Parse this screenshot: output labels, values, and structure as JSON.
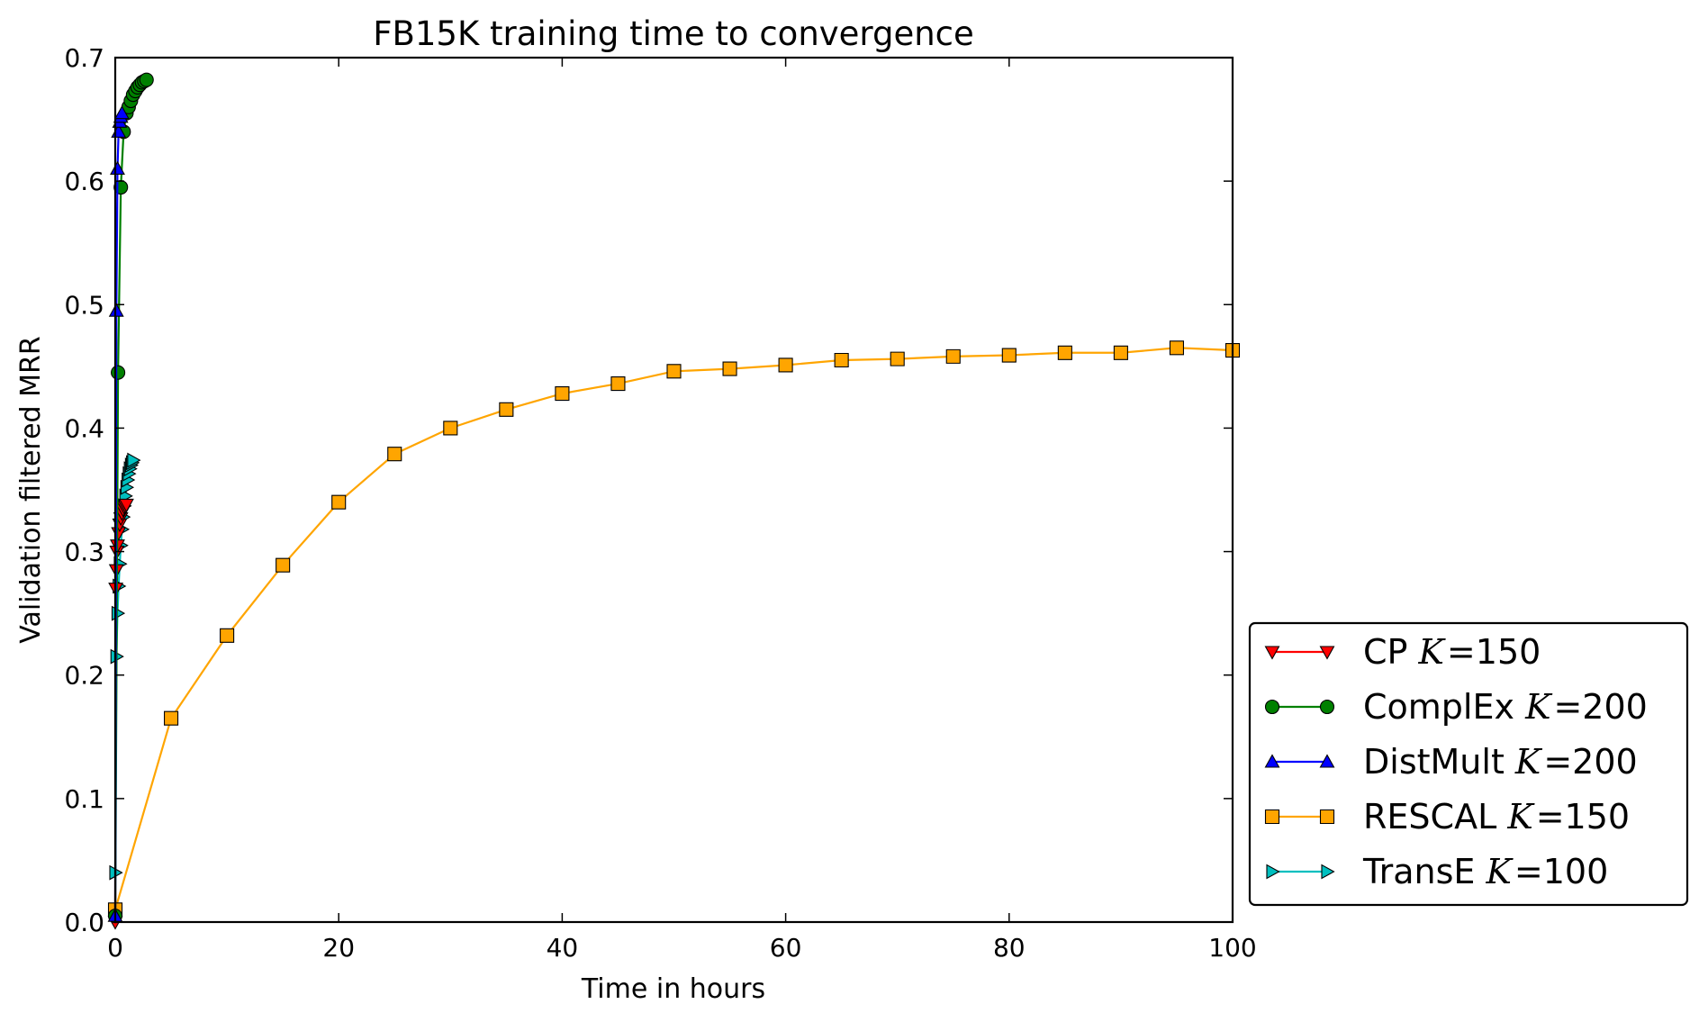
{
  "chart_data": {
    "type": "line",
    "title": "FB15K training time to convergence",
    "xlabel": "Time in hours",
    "ylabel": "Validation filtered MRR",
    "xlim": [
      0,
      100
    ],
    "ylim": [
      0,
      0.7
    ],
    "xticks": [
      "0",
      "20",
      "40",
      "60",
      "80",
      "100"
    ],
    "yticks": [
      "0.0",
      "0.1",
      "0.2",
      "0.3",
      "0.4",
      "0.5",
      "0.6",
      "0.7"
    ],
    "grid": false,
    "legend_position": "right, outside plot, bottom",
    "series": [
      {
        "name": "CP K=150",
        "label_text": "CP ",
        "label_k": "K",
        "label_eq": "=",
        "label_value": "150",
        "color": "#ff0000",
        "marker": "triangle-down",
        "x": [
          0.0,
          0.05,
          0.1,
          0.15,
          0.2,
          0.3,
          0.4,
          0.5,
          0.6,
          0.7,
          0.8,
          0.9,
          1.0
        ],
        "y": [
          0.0,
          0.27,
          0.285,
          0.3,
          0.305,
          0.315,
          0.322,
          0.327,
          0.331,
          0.334,
          0.336,
          0.337,
          0.338
        ]
      },
      {
        "name": "ComplEx K=200",
        "label_text": "ComplEx ",
        "label_k": "K",
        "label_eq": "=",
        "label_value": "200",
        "color": "#008000",
        "marker": "circle",
        "x": [
          0.0,
          0.25,
          0.5,
          0.75,
          1.0,
          1.2,
          1.4,
          1.6,
          1.8,
          2.0,
          2.2,
          2.4,
          2.6,
          2.8
        ],
        "y": [
          0.005,
          0.445,
          0.595,
          0.64,
          0.655,
          0.66,
          0.665,
          0.67,
          0.673,
          0.676,
          0.678,
          0.68,
          0.681,
          0.682
        ]
      },
      {
        "name": "DistMult K=200",
        "label_text": "DistMult ",
        "label_k": "K",
        "label_eq": "=",
        "label_value": "200",
        "color": "#0000ff",
        "marker": "triangle-up",
        "x": [
          0.0,
          0.1,
          0.2,
          0.3,
          0.4,
          0.5,
          0.6
        ],
        "y": [
          0.005,
          0.495,
          0.61,
          0.64,
          0.648,
          0.652,
          0.655
        ]
      },
      {
        "name": "RESCAL K=150",
        "label_text": "RESCAL ",
        "label_k": "K",
        "label_eq": "=",
        "label_value": "150",
        "color": "#ffa500",
        "marker": "square",
        "x": [
          0,
          5,
          10,
          15,
          20,
          25,
          30,
          35,
          40,
          45,
          50,
          55,
          60,
          65,
          70,
          75,
          80,
          85,
          90,
          95,
          100
        ],
        "y": [
          0.01,
          0.165,
          0.232,
          0.289,
          0.34,
          0.379,
          0.4,
          0.415,
          0.428,
          0.436,
          0.446,
          0.448,
          0.451,
          0.455,
          0.456,
          0.458,
          0.459,
          0.461,
          0.461,
          0.465,
          0.463
        ]
      },
      {
        "name": "TransE K=100",
        "label_text": "TransE ",
        "label_k": "K",
        "label_eq": "=",
        "label_value": "100",
        "color": "#00bfbf",
        "marker": "triangle-right",
        "x": [
          0.0,
          0.1,
          0.2,
          0.3,
          0.4,
          0.5,
          0.6,
          0.7,
          0.8,
          0.9,
          1.0,
          1.1,
          1.2,
          1.3,
          1.4,
          1.5,
          1.6
        ],
        "y": [
          0.04,
          0.215,
          0.25,
          0.272,
          0.29,
          0.305,
          0.318,
          0.328,
          0.337,
          0.345,
          0.352,
          0.358,
          0.363,
          0.367,
          0.37,
          0.372,
          0.374
        ]
      }
    ]
  }
}
